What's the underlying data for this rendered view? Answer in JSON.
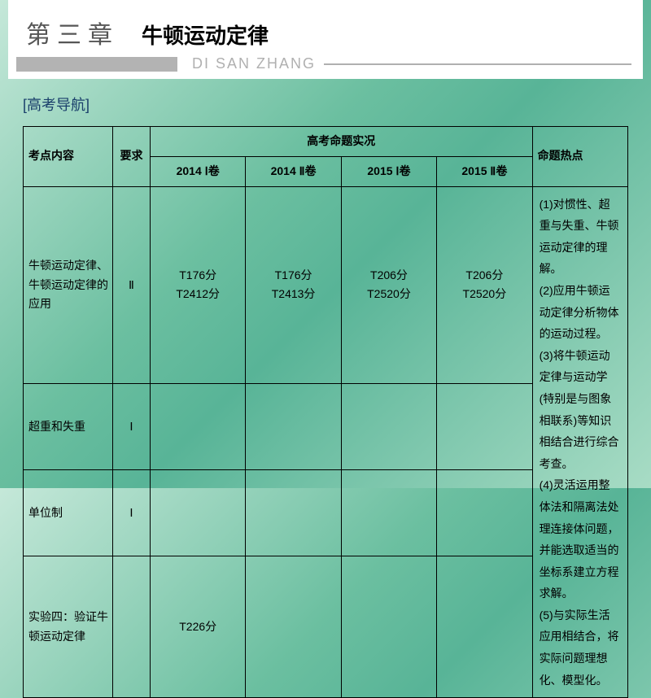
{
  "header": {
    "chapter_num": "第三章",
    "chapter_title": "牛顿运动定律",
    "pinyin": "DI SAN ZHANG"
  },
  "section_label": "[高考导航]",
  "table": {
    "head": {
      "topic": "考点内容",
      "req": "要求",
      "exam_group": "高考命题实况",
      "years": [
        "2014 Ⅰ卷",
        "2014 Ⅱ卷",
        "2015 Ⅰ卷",
        "2015 Ⅱ卷"
      ],
      "hot": "命题热点"
    },
    "rows": [
      {
        "topic": "牛顿运动定律、牛顿运动定律的应用",
        "req": "Ⅱ",
        "cells": [
          "T176分\nT2412分",
          "T176分\nT2413分",
          "T206分\nT2520分",
          "T206分\nT2520分"
        ]
      },
      {
        "topic": "超重和失重",
        "req": "Ⅰ",
        "cells": [
          "",
          "",
          "",
          ""
        ]
      },
      {
        "topic": "单位制",
        "req": "Ⅰ",
        "cells": [
          "",
          "",
          "",
          ""
        ]
      },
      {
        "topic": "实验四：验证牛顿运动定律",
        "req": "",
        "cells": [
          "T226分",
          "",
          "",
          ""
        ]
      }
    ],
    "hot_points": "(1)对惯性、超重与失重、牛顿运动定律的理解。\n(2)应用牛顿运动定律分析物体的运动过程。\n(3)将牛顿运动定律与运动学(特别是与图象相联系)等知识相结合进行综合考查。\n(4)灵活运用整体法和隔离法处理连接体问题，并能选取适当的坐标系建立方程求解。\n(5)与实际生活应用相结合，将实际问题理想化、模型化。"
  },
  "style": {
    "border_color": "#000000",
    "header_bg": "#ffffff",
    "text_color": "#000000",
    "label_color": "#1a3f6b",
    "font_size_body": 14,
    "font_size_chapter": 30,
    "font_size_title": 26
  }
}
